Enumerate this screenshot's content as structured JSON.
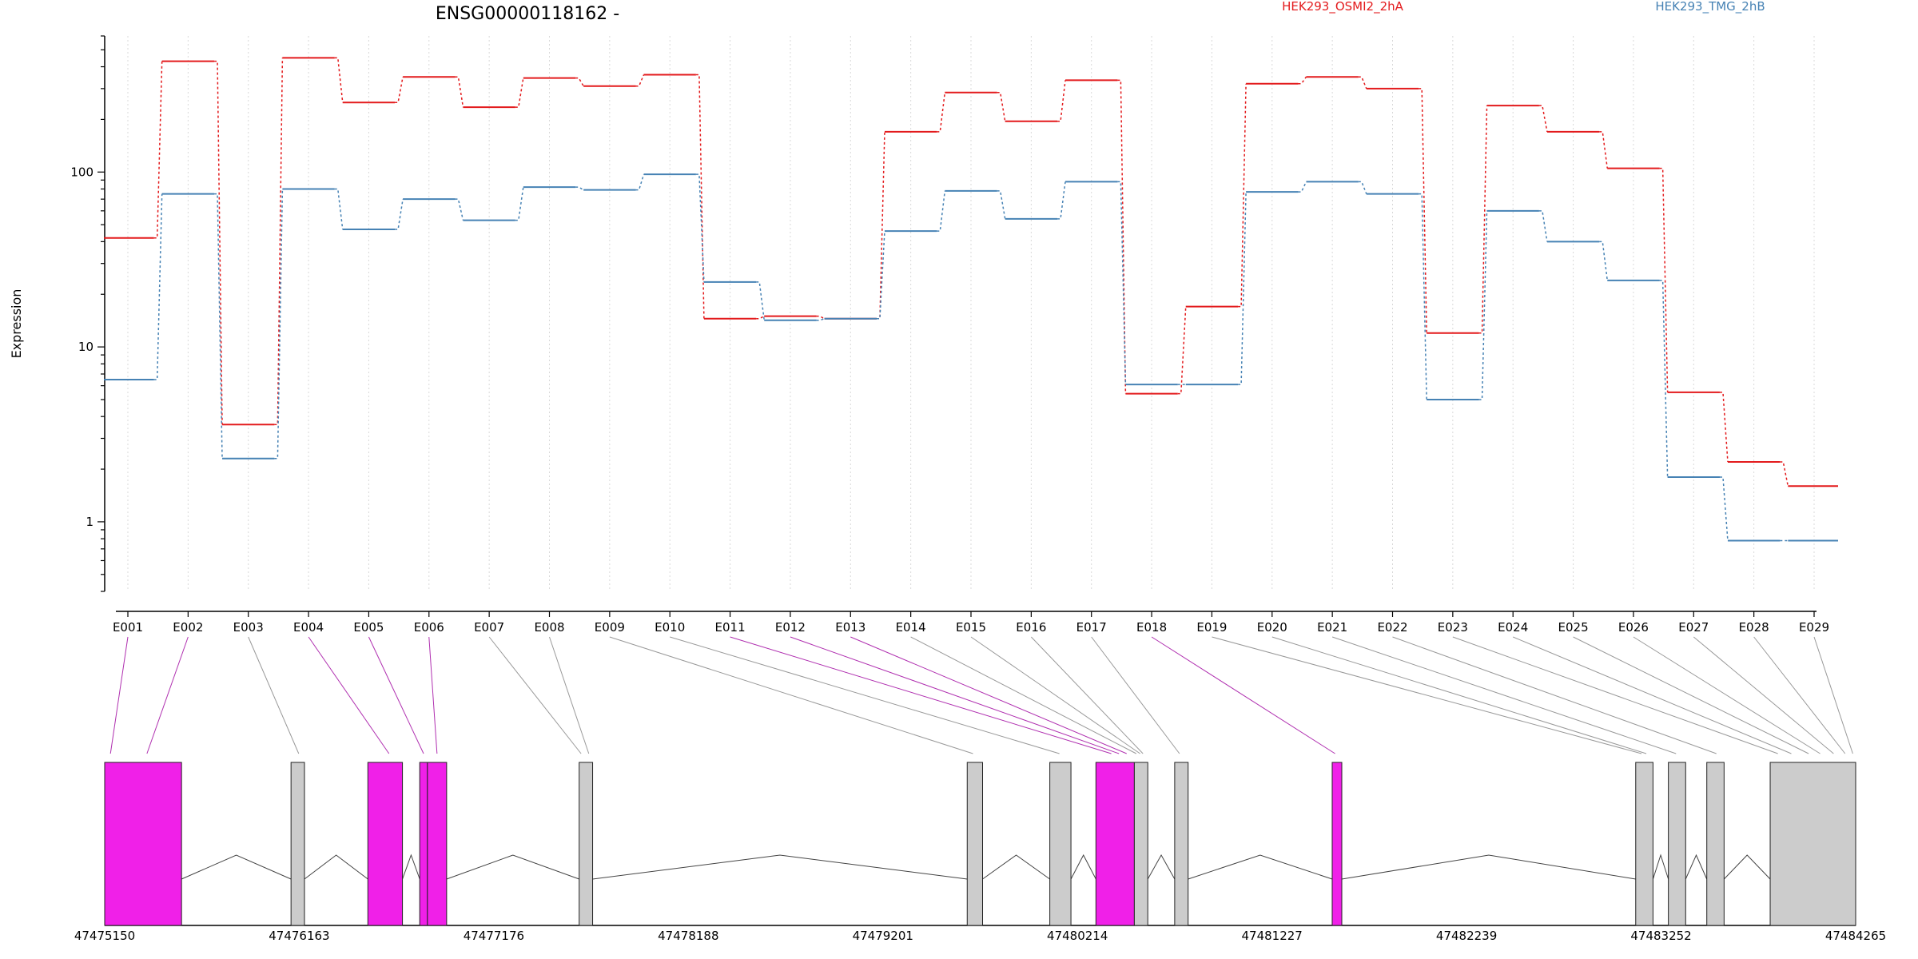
{
  "chart_data": {
    "type": "line",
    "title": "ENSG00000118162 -",
    "ylabel": "Expression",
    "yscale": "log",
    "ylim": [
      0.4,
      600
    ],
    "yticks": [
      1,
      10,
      100
    ],
    "ytick_labels": [
      "1",
      "10",
      "100"
    ],
    "grid": "vertical-dotted",
    "legend_placement": "top",
    "categories": [
      "E001",
      "E002",
      "E003",
      "E004",
      "E005",
      "E006",
      "E007",
      "E008",
      "E009",
      "E010",
      "E011",
      "E012",
      "E013",
      "E014",
      "E015",
      "E016",
      "E017",
      "E018",
      "E019",
      "E020",
      "E021",
      "E022",
      "E023",
      "E024",
      "E025",
      "E026",
      "E027",
      "E028",
      "E029"
    ],
    "series": [
      {
        "name": "HEK293_OSMI2_2hA",
        "color": "#e31a1c",
        "values": [
          42,
          430,
          3.6,
          450,
          250,
          350,
          235,
          345,
          310,
          360,
          14.5,
          15,
          14.5,
          170,
          285,
          195,
          335,
          5.4,
          17,
          320,
          350,
          300,
          12,
          240,
          170,
          105,
          5.5,
          2.2,
          1.6
        ]
      },
      {
        "name": "HEK293_TMG_2hB",
        "color": "#4682b4",
        "values": [
          6.5,
          75,
          2.3,
          80,
          47,
          70,
          53,
          82,
          79,
          97,
          23.5,
          14.2,
          14.5,
          46,
          78,
          54,
          88,
          6.1,
          6.1,
          77,
          88,
          75,
          5,
          60,
          40,
          24,
          1.8,
          0.78,
          0.78
        ]
      }
    ],
    "gene_model": {
      "genomic_ticks": [
        "47475150",
        "47476163",
        "47477176",
        "47478188",
        "47479201",
        "47480214",
        "47481227",
        "47482239",
        "47483252",
        "47484265"
      ],
      "genomic_range": [
        47475150,
        47484265
      ],
      "highlight_color": "#f020e8",
      "exon_color": "#cccccc",
      "exons": [
        {
          "start": 47475150,
          "end": 47475550,
          "highlight": true
        },
        {
          "start": 47476120,
          "end": 47476190,
          "highlight": false
        },
        {
          "start": 47476520,
          "end": 47476700,
          "highlight": true
        },
        {
          "start": 47476790,
          "end": 47476830,
          "highlight": true
        },
        {
          "start": 47476830,
          "end": 47476930,
          "highlight": true
        },
        {
          "start": 47477620,
          "end": 47477690,
          "highlight": false
        },
        {
          "start": 47479640,
          "end": 47479720,
          "highlight": false
        },
        {
          "start": 47480070,
          "end": 47480180,
          "highlight": false
        },
        {
          "start": 47480310,
          "end": 47480510,
          "highlight": true
        },
        {
          "start": 47480510,
          "end": 47480580,
          "highlight": false
        },
        {
          "start": 47480720,
          "end": 47480790,
          "highlight": false
        },
        {
          "start": 47481540,
          "end": 47481590,
          "highlight": true
        },
        {
          "start": 47483120,
          "end": 47483210,
          "highlight": false
        },
        {
          "start": 47483290,
          "end": 47483380,
          "highlight": false
        },
        {
          "start": 47483490,
          "end": 47483580,
          "highlight": false
        },
        {
          "start": 47483820,
          "end": 47484265,
          "highlight": false
        }
      ],
      "exon_map": [
        {
          "id": "E001",
          "pos": 47475180,
          "highlight": true
        },
        {
          "id": "E002",
          "pos": 47475370,
          "highlight": true
        },
        {
          "id": "E003",
          "pos": 47476160,
          "highlight": false
        },
        {
          "id": "E004",
          "pos": 47476630,
          "highlight": true
        },
        {
          "id": "E005",
          "pos": 47476810,
          "highlight": true
        },
        {
          "id": "E006",
          "pos": 47476880,
          "highlight": true
        },
        {
          "id": "E007",
          "pos": 47477630,
          "highlight": false
        },
        {
          "id": "E008",
          "pos": 47477670,
          "highlight": false
        },
        {
          "id": "E009",
          "pos": 47479670,
          "highlight": false
        },
        {
          "id": "E010",
          "pos": 47480120,
          "highlight": false
        },
        {
          "id": "E011",
          "pos": 47480390,
          "highlight": true
        },
        {
          "id": "E012",
          "pos": 47480430,
          "highlight": true
        },
        {
          "id": "E013",
          "pos": 47480470,
          "highlight": true
        },
        {
          "id": "E014",
          "pos": 47480520,
          "highlight": false
        },
        {
          "id": "E015",
          "pos": 47480540,
          "highlight": false
        },
        {
          "id": "E016",
          "pos": 47480555,
          "highlight": false
        },
        {
          "id": "E017",
          "pos": 47480745,
          "highlight": false
        },
        {
          "id": "E018",
          "pos": 47481555,
          "highlight": true
        },
        {
          "id": "E019",
          "pos": 47483150,
          "highlight": false
        },
        {
          "id": "E020",
          "pos": 47483175,
          "highlight": false
        },
        {
          "id": "E021",
          "pos": 47483330,
          "highlight": false
        },
        {
          "id": "E022",
          "pos": 47483540,
          "highlight": false
        },
        {
          "id": "E023",
          "pos": 47483860,
          "highlight": false
        },
        {
          "id": "E024",
          "pos": 47483930,
          "highlight": false
        },
        {
          "id": "E025",
          "pos": 47484020,
          "highlight": false
        },
        {
          "id": "E026",
          "pos": 47484080,
          "highlight": false
        },
        {
          "id": "E027",
          "pos": 47484150,
          "highlight": false
        },
        {
          "id": "E028",
          "pos": 47484210,
          "highlight": false
        },
        {
          "id": "E029",
          "pos": 47484250,
          "highlight": false
        }
      ]
    }
  }
}
